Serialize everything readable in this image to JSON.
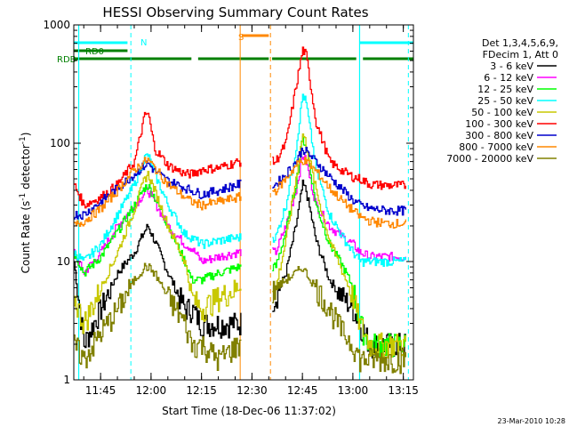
{
  "chart_data": {
    "type": "line",
    "title": "HESSI Observing Summary Count Rates",
    "xlabel": "Start Time (18-Dec-06 11:37:02)",
    "ylabel": "Count Rate (s⁻¹ detector⁻¹)",
    "ylabel_main": "Count Rate (s",
    "ylabel_sup1": "-1",
    "ylabel_mid": " detector",
    "ylabel_sup2": "-1",
    "ylabel_end": ")",
    "y_scale": "log",
    "ylim": [
      1,
      1000
    ],
    "xlim": [
      "11:37:02",
      "13:18:00"
    ],
    "x_tick_labels": [
      "11:45",
      "12:00",
      "12:15",
      "12:30",
      "12:45",
      "13:00",
      "13:15"
    ],
    "y_tick_labels": [
      "1",
      "10",
      "100",
      "1000"
    ],
    "legend": {
      "header": [
        "Det 1,3,4,5,6,9,",
        "FDecim 1, Att 0"
      ],
      "placement": "right",
      "entries": [
        {
          "label": "3 - 6 keV",
          "color": "#000000"
        },
        {
          "label": "6 - 12 keV",
          "color": "#ff00ff"
        },
        {
          "label": "12 - 25 keV",
          "color": "#00ff00"
        },
        {
          "label": "25 - 50 keV",
          "color": "#00ffff"
        },
        {
          "label": "50 - 100 keV",
          "color": "#c8c800"
        },
        {
          "label": "100 - 300 keV",
          "color": "#ff0000"
        },
        {
          "label": "300 - 800 keV",
          "color": "#0000cc"
        },
        {
          "label": "800 - 7000 keV",
          "color": "#ff8800"
        },
        {
          "label": "7000 - 20000 keV",
          "color": "#808000"
        }
      ]
    },
    "flags": {
      "N_label": "N",
      "S_label": "S",
      "RD0_label": "RD0",
      "RDB_label": "RDB",
      "night": [
        [
          "11:37:02",
          "11:53:00"
        ],
        [
          "13:02:00",
          "13:18:00"
        ]
      ],
      "saa": [
        [
          "12:27:00",
          "12:35:00"
        ]
      ],
      "rd0": [
        [
          "11:37:02",
          "11:53:00"
        ]
      ],
      "rdb": [
        [
          "11:37:02",
          "12:12:00"
        ],
        [
          "12:14:00",
          "12:35:00"
        ],
        [
          "12:36:00",
          "13:01:00"
        ],
        [
          "13:03:00",
          "13:18:00"
        ]
      ],
      "night_color": "#00ffff",
      "saa_color": "#ff8800",
      "rd_color": "#008000"
    },
    "vertical_lines": {
      "cyan_dashed": [
        "11:54:00",
        "13:16:30"
      ],
      "cyan_solid": [
        "11:38:30",
        "13:02:00"
      ],
      "orange_dashed": [
        "12:35:30"
      ],
      "orange_solid": [
        "12:26:30"
      ],
      "colors": {
        "cyan": "#00ffff",
        "orange": "#ff8800"
      }
    },
    "gaps": [
      [
        "12:27:00",
        "12:36:00"
      ]
    ],
    "series": [
      {
        "name": "3 - 6 keV",
        "color": "#000000",
        "points": [
          [
            "11:37:02",
            10
          ],
          [
            "11:40:00",
            2
          ],
          [
            "11:45:00",
            4
          ],
          [
            "11:50:00",
            8
          ],
          [
            "11:55:00",
            12
          ],
          [
            "11:58:00",
            18
          ],
          [
            "11:59:00",
            20
          ],
          [
            "12:01:00",
            15
          ],
          [
            "12:05:00",
            8
          ],
          [
            "12:10:00",
            4
          ],
          [
            "12:12:00",
            4
          ],
          [
            "12:15:00",
            3
          ],
          [
            "12:20:00",
            3
          ],
          [
            "12:26:00",
            3
          ],
          [
            "12:37:00",
            5
          ],
          [
            "12:40:00",
            8
          ],
          [
            "12:43:00",
            20
          ],
          [
            "12:45:00",
            45
          ],
          [
            "12:46:00",
            40
          ],
          [
            "12:49:00",
            15
          ],
          [
            "12:53:00",
            7
          ],
          [
            "12:57:00",
            5
          ],
          [
            "13:00:00",
            4
          ],
          [
            "13:02:00",
            3
          ],
          [
            "13:05:00",
            2
          ],
          [
            "13:10:00",
            2
          ],
          [
            "13:16:00",
            2
          ]
        ]
      },
      {
        "name": "6 - 12 keV",
        "color": "#ff00ff",
        "points": [
          [
            "11:37:02",
            12
          ],
          [
            "11:40:00",
            8
          ],
          [
            "11:45:00",
            12
          ],
          [
            "11:50:00",
            20
          ],
          [
            "11:55:00",
            30
          ],
          [
            "11:58:00",
            38
          ],
          [
            "11:59:00",
            40
          ],
          [
            "12:01:00",
            32
          ],
          [
            "12:05:00",
            20
          ],
          [
            "12:10:00",
            14
          ],
          [
            "12:12:00",
            13
          ],
          [
            "12:15:00",
            10
          ],
          [
            "12:20:00",
            11
          ],
          [
            "12:26:00",
            12
          ],
          [
            "12:37:00",
            12
          ],
          [
            "12:40:00",
            20
          ],
          [
            "12:43:00",
            40
          ],
          [
            "12:45:00",
            80
          ],
          [
            "12:46:00",
            70
          ],
          [
            "12:49:00",
            30
          ],
          [
            "12:53:00",
            20
          ],
          [
            "12:57:00",
            16
          ],
          [
            "13:00:00",
            14
          ],
          [
            "13:02:00",
            12
          ],
          [
            "13:05:00",
            11
          ],
          [
            "13:10:00",
            11
          ],
          [
            "13:16:00",
            11
          ]
        ]
      },
      {
        "name": "12 - 25 keV",
        "color": "#00ff00",
        "points": [
          [
            "11:37:02",
            12
          ],
          [
            "11:40:00",
            8
          ],
          [
            "11:45:00",
            11
          ],
          [
            "11:50:00",
            18
          ],
          [
            "11:55:00",
            30
          ],
          [
            "11:58:00",
            42
          ],
          [
            "11:59:00",
            44
          ],
          [
            "12:01:00",
            35
          ],
          [
            "12:05:00",
            20
          ],
          [
            "12:10:00",
            10
          ],
          [
            "12:12:00",
            7
          ],
          [
            "12:15:00",
            7
          ],
          [
            "12:20:00",
            8
          ],
          [
            "12:26:00",
            9
          ],
          [
            "12:37:00",
            9
          ],
          [
            "12:40:00",
            18
          ],
          [
            "12:43:00",
            45
          ],
          [
            "12:45:00",
            110
          ],
          [
            "12:46:00",
            95
          ],
          [
            "12:49:00",
            30
          ],
          [
            "12:53:00",
            14
          ],
          [
            "12:57:00",
            9
          ],
          [
            "13:00:00",
            6
          ],
          [
            "13:02:00",
            3
          ],
          [
            "13:05:00",
            2
          ],
          [
            "13:10:00",
            2
          ],
          [
            "13:16:00",
            2
          ]
        ]
      },
      {
        "name": "25 - 50 keV",
        "color": "#00ffff",
        "points": [
          [
            "11:37:02",
            12
          ],
          [
            "11:40:00",
            10
          ],
          [
            "11:45:00",
            14
          ],
          [
            "11:50:00",
            25
          ],
          [
            "11:55:00",
            45
          ],
          [
            "11:58:00",
            75
          ],
          [
            "11:59:00",
            80
          ],
          [
            "12:01:00",
            55
          ],
          [
            "12:05:00",
            30
          ],
          [
            "12:10:00",
            17
          ],
          [
            "12:12:00",
            16
          ],
          [
            "12:15:00",
            14
          ],
          [
            "12:20:00",
            15
          ],
          [
            "12:26:00",
            16
          ],
          [
            "12:37:00",
            16
          ],
          [
            "12:40:00",
            30
          ],
          [
            "12:43:00",
            90
          ],
          [
            "12:45:00",
            260
          ],
          [
            "12:46:00",
            220
          ],
          [
            "12:49:00",
            60
          ],
          [
            "12:53:00",
            25
          ],
          [
            "12:57:00",
            16
          ],
          [
            "13:00:00",
            12
          ],
          [
            "13:02:00",
            10
          ],
          [
            "13:05:00",
            10
          ],
          [
            "13:10:00",
            10
          ],
          [
            "13:16:00",
            10
          ]
        ]
      },
      {
        "name": "50 - 100 keV",
        "color": "#c8c800",
        "points": [
          [
            "11:37:02",
            5
          ],
          [
            "11:40:00",
            3
          ],
          [
            "11:45:00",
            6
          ],
          [
            "11:50:00",
            12
          ],
          [
            "11:55:00",
            28
          ],
          [
            "11:58:00",
            50
          ],
          [
            "11:59:00",
            55
          ],
          [
            "12:01:00",
            40
          ],
          [
            "12:05:00",
            20
          ],
          [
            "12:10:00",
            10
          ],
          [
            "12:12:00",
            5
          ],
          [
            "12:15:00",
            4
          ],
          [
            "12:20:00",
            5
          ],
          [
            "12:26:00",
            6
          ],
          [
            "12:37:00",
            6
          ],
          [
            "12:40:00",
            15
          ],
          [
            "12:43:00",
            50
          ],
          [
            "12:45:00",
            120
          ],
          [
            "12:46:00",
            100
          ],
          [
            "12:49:00",
            40
          ],
          [
            "12:53:00",
            15
          ],
          [
            "12:57:00",
            8
          ],
          [
            "13:00:00",
            5
          ],
          [
            "13:02:00",
            3
          ],
          [
            "13:05:00",
            2
          ],
          [
            "13:10:00",
            2
          ],
          [
            "13:16:00",
            2
          ]
        ]
      },
      {
        "name": "100 - 300 keV",
        "color": "#ff0000",
        "points": [
          [
            "11:37:02",
            45
          ],
          [
            "11:40:00",
            30
          ],
          [
            "11:45:00",
            35
          ],
          [
            "11:50:00",
            45
          ],
          [
            "11:55:00",
            70
          ],
          [
            "11:58:00",
            170
          ],
          [
            "11:59:00",
            180
          ],
          [
            "12:01:00",
            90
          ],
          [
            "12:05:00",
            65
          ],
          [
            "12:10:00",
            55
          ],
          [
            "12:12:00",
            55
          ],
          [
            "12:15:00",
            60
          ],
          [
            "12:20:00",
            62
          ],
          [
            "12:26:00",
            70
          ],
          [
            "12:37:00",
            70
          ],
          [
            "12:40:00",
            100
          ],
          [
            "12:43:00",
            300
          ],
          [
            "12:45:00",
            620
          ],
          [
            "12:46:00",
            560
          ],
          [
            "12:49:00",
            150
          ],
          [
            "12:53:00",
            70
          ],
          [
            "12:57:00",
            58
          ],
          [
            "13:00:00",
            52
          ],
          [
            "13:02:00",
            50
          ],
          [
            "13:05:00",
            45
          ],
          [
            "13:10:00",
            44
          ],
          [
            "13:16:00",
            44
          ]
        ]
      },
      {
        "name": "300 - 800 keV",
        "color": "#0000cc",
        "points": [
          [
            "11:37:02",
            25
          ],
          [
            "11:40:00",
            25
          ],
          [
            "11:45:00",
            32
          ],
          [
            "11:50:00",
            42
          ],
          [
            "11:55:00",
            55
          ],
          [
            "11:58:00",
            65
          ],
          [
            "11:59:00",
            68
          ],
          [
            "12:01:00",
            58
          ],
          [
            "12:05:00",
            48
          ],
          [
            "12:10:00",
            42
          ],
          [
            "12:12:00",
            40
          ],
          [
            "12:15:00",
            37
          ],
          [
            "12:20:00",
            40
          ],
          [
            "12:26:00",
            45
          ],
          [
            "12:37:00",
            45
          ],
          [
            "12:40:00",
            55
          ],
          [
            "12:43:00",
            70
          ],
          [
            "12:45:00",
            90
          ],
          [
            "12:46:00",
            85
          ],
          [
            "12:49:00",
            70
          ],
          [
            "12:53:00",
            52
          ],
          [
            "12:57:00",
            40
          ],
          [
            "13:00:00",
            33
          ],
          [
            "13:02:00",
            30
          ],
          [
            "13:05:00",
            28
          ],
          [
            "13:10:00",
            27
          ],
          [
            "13:16:00",
            27
          ]
        ]
      },
      {
        "name": "800 - 7000 keV",
        "color": "#ff8800",
        "points": [
          [
            "11:37:02",
            20
          ],
          [
            "11:40:00",
            22
          ],
          [
            "11:45:00",
            28
          ],
          [
            "11:50:00",
            40
          ],
          [
            "11:55:00",
            60
          ],
          [
            "11:58:00",
            70
          ],
          [
            "11:59:00",
            72
          ],
          [
            "12:01:00",
            62
          ],
          [
            "12:05:00",
            45
          ],
          [
            "12:10:00",
            35
          ],
          [
            "12:12:00",
            32
          ],
          [
            "12:15:00",
            30
          ],
          [
            "12:20:00",
            32
          ],
          [
            "12:26:00",
            35
          ],
          [
            "12:37:00",
            40
          ],
          [
            "12:40:00",
            50
          ],
          [
            "12:43:00",
            65
          ],
          [
            "12:45:00",
            72
          ],
          [
            "12:46:00",
            70
          ],
          [
            "12:49:00",
            58
          ],
          [
            "12:53:00",
            42
          ],
          [
            "12:57:00",
            32
          ],
          [
            "13:00:00",
            27
          ],
          [
            "13:02:00",
            24
          ],
          [
            "13:05:00",
            22
          ],
          [
            "13:10:00",
            21
          ],
          [
            "13:16:00",
            21
          ]
        ]
      },
      {
        "name": "7000 - 20000 keV",
        "color": "#808000",
        "points": [
          [
            "11:37:02",
            2
          ],
          [
            "11:40:00",
            1.5
          ],
          [
            "11:45:00",
            2.5
          ],
          [
            "11:50:00",
            4
          ],
          [
            "11:55:00",
            7
          ],
          [
            "11:58:00",
            9
          ],
          [
            "11:59:00",
            9
          ],
          [
            "12:01:00",
            8
          ],
          [
            "12:05:00",
            5
          ],
          [
            "12:10:00",
            3
          ],
          [
            "12:12:00",
            2
          ],
          [
            "12:15:00",
            2
          ],
          [
            "12:20:00",
            1.5
          ],
          [
            "12:26:00",
            2
          ],
          [
            "12:37:00",
            6
          ],
          [
            "12:40:00",
            7
          ],
          [
            "12:43:00",
            8
          ],
          [
            "12:45:00",
            9
          ],
          [
            "12:46:00",
            8
          ],
          [
            "12:49:00",
            6
          ],
          [
            "12:53:00",
            4
          ],
          [
            "12:57:00",
            2.5
          ],
          [
            "13:00:00",
            2
          ],
          [
            "13:02:00",
            1.5
          ],
          [
            "13:05:00",
            1.5
          ],
          [
            "13:10:00",
            1.5
          ],
          [
            "13:16:00",
            1.5
          ]
        ]
      }
    ],
    "footer_date": "23-Mar-2010 10:28"
  }
}
